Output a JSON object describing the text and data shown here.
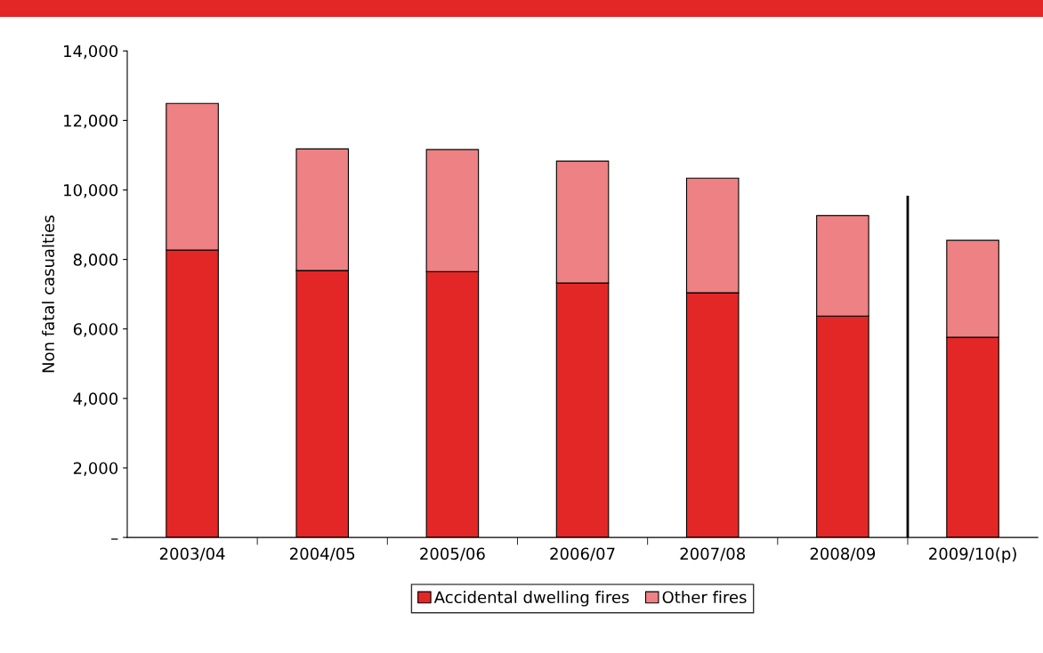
{
  "chart_data": {
    "type": "bar",
    "stacked": true,
    "ylabel": "Non fatal casualties",
    "categories": [
      "2003/04",
      "2004/05",
      "2005/06",
      "2006/07",
      "2007/08",
      "2008/09",
      "2009/10(p)"
    ],
    "series": [
      {
        "name": "Accidental dwelling fires",
        "color": "#e32726",
        "values": [
          8270,
          7680,
          7650,
          7320,
          7040,
          6370,
          5760
        ]
      },
      {
        "name": "Other fires",
        "color": "#ee8183",
        "values": [
          4220,
          3500,
          3510,
          3510,
          3300,
          2890,
          2790
        ]
      }
    ],
    "ylim": [
      0,
      14000
    ],
    "yticks": [
      {
        "value": 0,
        "label": "–"
      },
      {
        "value": 2000,
        "label": "2,000"
      },
      {
        "value": 4000,
        "label": "4,000"
      },
      {
        "value": 6000,
        "label": "6,000"
      },
      {
        "value": 8000,
        "label": "8,000"
      },
      {
        "value": 10000,
        "label": "10,000"
      },
      {
        "value": 12000,
        "label": "12,000"
      },
      {
        "value": 14000,
        "label": "14,000"
      }
    ],
    "grid": false,
    "legend": "bottom"
  }
}
